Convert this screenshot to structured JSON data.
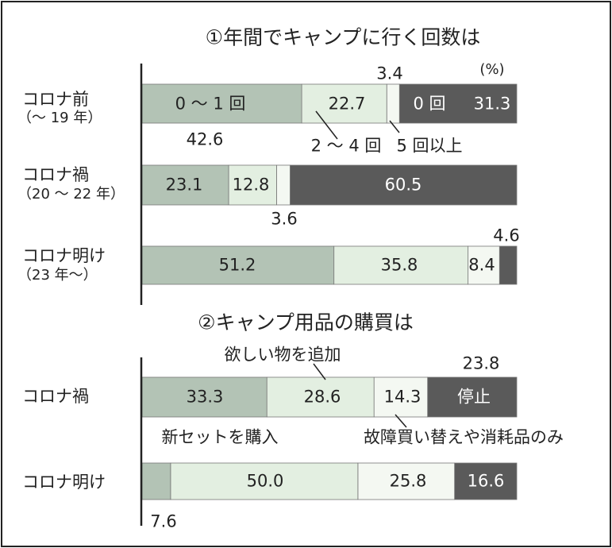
{
  "colors": [
    "#b3c3b5",
    "#e3efe1",
    "#f4f8f2",
    "#5a5a5a"
  ],
  "chart_data": [
    {
      "type": "bar",
      "stacked": true,
      "orientation": "horizontal",
      "title": "①年間でキャンプに行く回数は",
      "unit": "(%)",
      "categories": [
        "コロナ前",
        "コロナ禍",
        "コロナ明け"
      ],
      "category_sub": [
        "（〜 19 年）",
        "（20 〜 22 年）",
        "（23 年〜）"
      ],
      "series": [
        {
          "name": "0〜1回",
          "values": [
            42.6,
            23.1,
            51.2
          ]
        },
        {
          "name": "2〜4回",
          "values": [
            22.7,
            12.8,
            35.8
          ]
        },
        {
          "name": "5回以上",
          "values": [
            3.4,
            3.6,
            8.4
          ]
        },
        {
          "name": "0回",
          "values": [
            31.3,
            60.5,
            4.6
          ]
        }
      ],
      "xlim": [
        0,
        100
      ]
    },
    {
      "type": "bar",
      "stacked": true,
      "orientation": "horizontal",
      "title": "②キャンプ用品の購買は",
      "categories": [
        "コロナ禍",
        "コロナ明け"
      ],
      "series": [
        {
          "name": "新セットを購入",
          "values": [
            33.3,
            7.6
          ]
        },
        {
          "name": "欲しい物を追加",
          "values": [
            28.6,
            50.0
          ]
        },
        {
          "name": "故障買い替えや消耗品のみ",
          "values": [
            14.3,
            25.8
          ]
        },
        {
          "name": "停止",
          "values": [
            23.8,
            16.6
          ]
        }
      ],
      "xlim": [
        0,
        100
      ]
    }
  ],
  "labels": {
    "c1_s1": "0 〜 1 回",
    "c1_s2": "2 〜 4 回",
    "c1_s3": "5 回以上",
    "c1_s4": "0 回",
    "c2_s4": "停止",
    "v": {
      "a": "42.6",
      "b": "22.7",
      "c": "3.4",
      "d": "31.3",
      "e": "23.1",
      "f": "12.8",
      "g": "3.6",
      "h": "60.5",
      "i": "51.2",
      "j": "35.8",
      "k": "8.4",
      "m": "4.6",
      "n": "33.3",
      "o": "28.6",
      "p": "14.3",
      "q": "23.8",
      "r": "7.6",
      "s": "50.0",
      "t": "25.8",
      "u": "16.6"
    }
  }
}
